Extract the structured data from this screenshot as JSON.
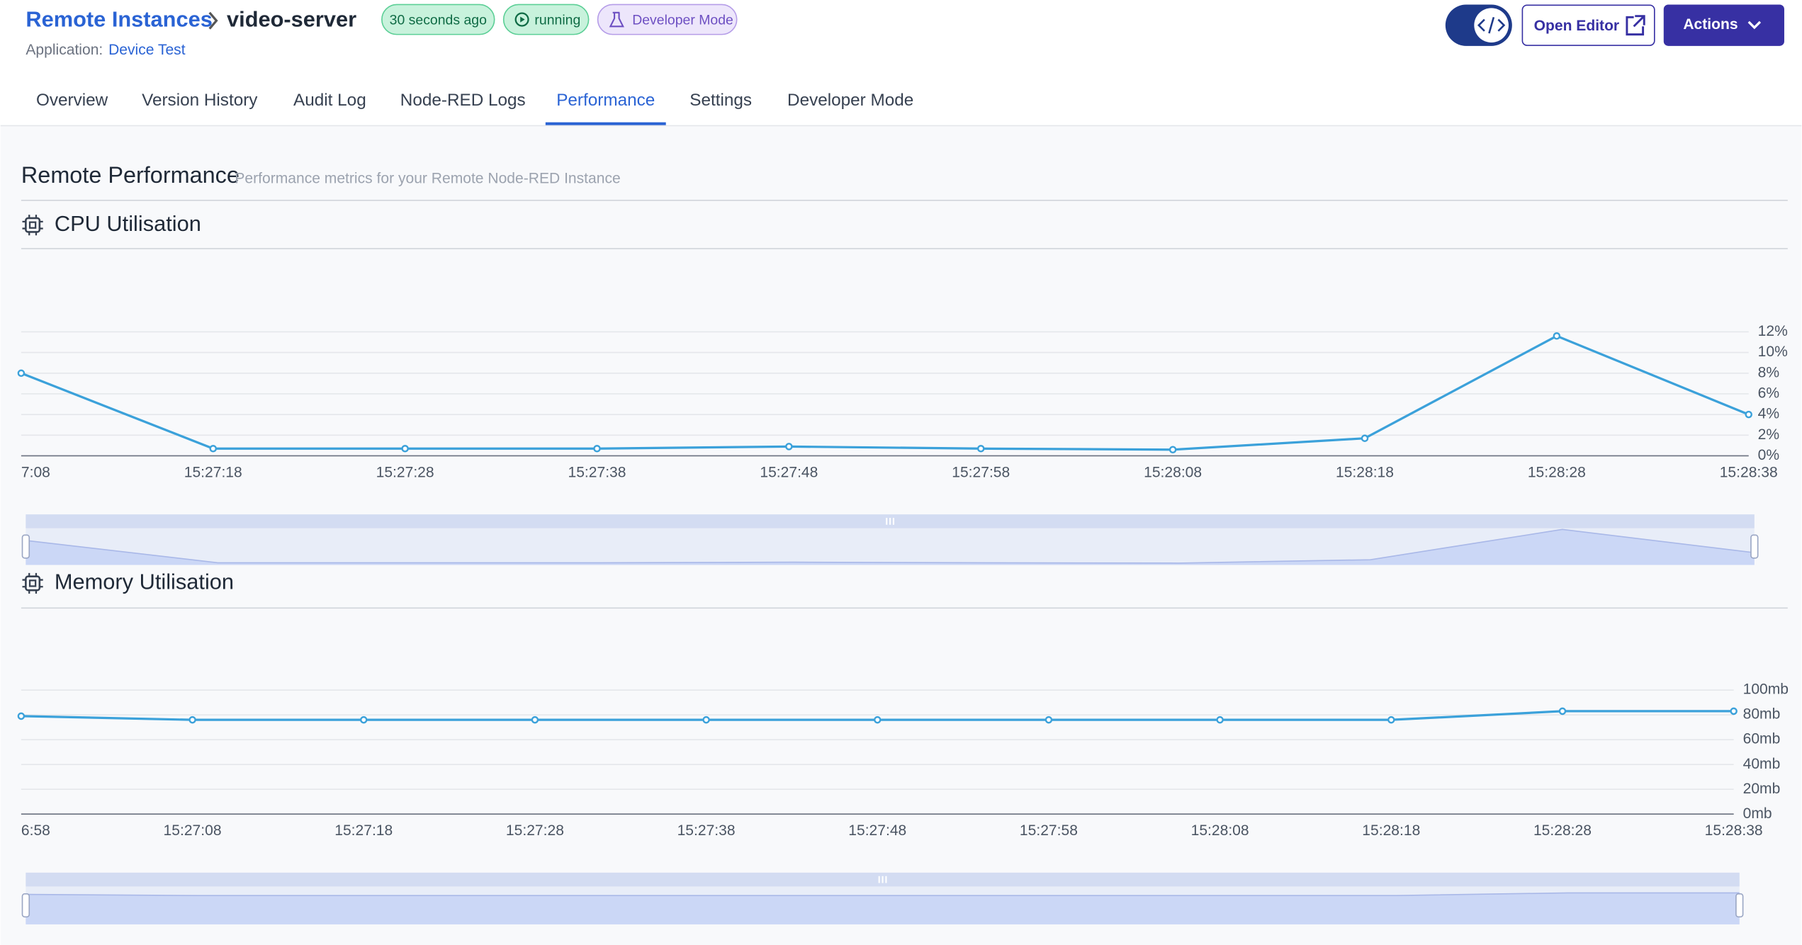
{
  "header": {
    "breadcrumb": "Remote Instances",
    "title": "video-server",
    "badges": [
      "30 seconds ago",
      "running",
      "Developer Mode"
    ],
    "application_label": "Application:",
    "application": "Device Test",
    "buttons": [
      "Open Editor",
      "Actions"
    ]
  },
  "tabs": {
    "items": [
      "Overview",
      "Version History",
      "Audit Log",
      "Node-RED Logs",
      "Performance",
      "Settings",
      "Developer Mode"
    ],
    "active": 4
  },
  "section": {
    "title": "Remote Performance",
    "subtitle": "Performance metrics for your Remote Node-RED Instance"
  },
  "chart_data": [
    {
      "type": "line",
      "title": "CPU Utilisation",
      "categories": [
        "7:08",
        "15:27:18",
        "15:27:28",
        "15:27:38",
        "15:27:48",
        "15:27:58",
        "15:28:08",
        "15:28:18",
        "15:28:28",
        "15:28:38"
      ],
      "values": [
        8.0,
        0.7,
        0.7,
        0.7,
        0.9,
        0.7,
        0.6,
        1.7,
        11.6,
        4.0
      ],
      "color": "#3ba1da",
      "ylim": [
        0,
        12
      ],
      "yticks": [
        {
          "value": 0,
          "label": "0%"
        },
        {
          "value": 2,
          "label": "2%"
        },
        {
          "value": 4,
          "label": "4%"
        },
        {
          "value": 6,
          "label": "6%"
        },
        {
          "value": 8,
          "label": "8%"
        },
        {
          "value": 10,
          "label": "10%"
        },
        {
          "value": 12,
          "label": "12%"
        }
      ],
      "grid": true
    },
    {
      "type": "line",
      "title": "Memory Utilisation",
      "categories": [
        "6:58",
        "15:27:08",
        "15:27:18",
        "15:27:28",
        "15:27:38",
        "15:27:48",
        "15:27:58",
        "15:28:08",
        "15:28:18",
        "15:28:28",
        "15:28:38"
      ],
      "values": [
        79,
        76,
        76,
        76,
        76,
        76,
        76,
        76,
        76,
        83,
        83
      ],
      "color": "#3ba1da",
      "ylim": [
        0,
        100
      ],
      "yticks": [
        {
          "value": 0,
          "label": "0mb"
        },
        {
          "value": 20,
          "label": "20mb"
        },
        {
          "value": 40,
          "label": "40mb"
        },
        {
          "value": 60,
          "label": "60mb"
        },
        {
          "value": 80,
          "label": "80mb"
        },
        {
          "value": 100,
          "label": "100mb"
        }
      ],
      "grid": true
    }
  ]
}
